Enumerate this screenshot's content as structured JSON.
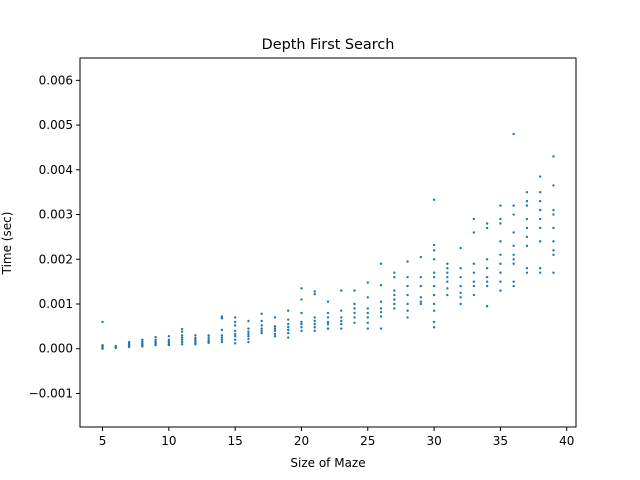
{
  "chart_data": {
    "type": "scatter",
    "title": "Depth First Search",
    "xlabel": "Size of Maze",
    "ylabel": "Time (sec)",
    "xlim": [
      3.3,
      40.7
    ],
    "ylim": [
      -0.00175,
      0.0065
    ],
    "xticks": [
      5,
      10,
      15,
      20,
      25,
      30,
      35,
      40
    ],
    "yticks": [
      -0.001,
      0.0,
      0.001,
      0.002,
      0.003,
      0.004,
      0.005,
      0.006
    ],
    "xtick_labels": [
      "5",
      "10",
      "15",
      "20",
      "25",
      "30",
      "35",
      "40"
    ],
    "ytick_labels": [
      "−0.001",
      "0.000",
      "0.001",
      "0.002",
      "0.003",
      "0.004",
      "0.005",
      "0.006"
    ],
    "grid": false,
    "color": "#1f77b4",
    "series": [
      {
        "points": [
          [
            5,
            0.0006
          ],
          [
            5,
            8e-05
          ],
          [
            5,
            6e-05
          ],
          [
            5,
            4e-05
          ],
          [
            5,
            2e-05
          ],
          [
            5,
            0.0
          ],
          [
            6,
            6e-05
          ],
          [
            6,
            4e-05
          ],
          [
            6,
            3e-05
          ],
          [
            6,
            2e-05
          ],
          [
            7,
            0.00015
          ],
          [
            7,
            0.00012
          ],
          [
            7,
            0.0001
          ],
          [
            7,
            8e-05
          ],
          [
            7,
            6e-05
          ],
          [
            7,
            4e-05
          ],
          [
            8,
            0.0002
          ],
          [
            8,
            0.00016
          ],
          [
            8,
            0.00012
          ],
          [
            8,
            0.0001
          ],
          [
            8,
            8e-05
          ],
          [
            8,
            5e-05
          ],
          [
            9,
            0.00026
          ],
          [
            9,
            0.0002
          ],
          [
            9,
            0.00016
          ],
          [
            9,
            0.00012
          ],
          [
            9,
            0.0001
          ],
          [
            9,
            8e-05
          ],
          [
            10,
            0.00028
          ],
          [
            10,
            0.0002
          ],
          [
            10,
            0.00016
          ],
          [
            10,
            0.00012
          ],
          [
            10,
            0.0001
          ],
          [
            10,
            8e-05
          ],
          [
            11,
            0.00044
          ],
          [
            11,
            0.00038
          ],
          [
            11,
            0.0003
          ],
          [
            11,
            0.00025
          ],
          [
            11,
            0.0002
          ],
          [
            11,
            0.00015
          ],
          [
            11,
            0.0001
          ],
          [
            12,
            0.0003
          ],
          [
            12,
            0.00024
          ],
          [
            12,
            0.0002
          ],
          [
            12,
            0.00016
          ],
          [
            12,
            0.00012
          ],
          [
            12,
            0.0001
          ],
          [
            13,
            0.0003
          ],
          [
            13,
            0.00025
          ],
          [
            13,
            0.0002
          ],
          [
            13,
            0.00016
          ],
          [
            13,
            0.00013
          ],
          [
            14,
            0.00072
          ],
          [
            14,
            0.00068
          ],
          [
            14,
            0.00042
          ],
          [
            14,
            0.0003
          ],
          [
            14,
            0.00025
          ],
          [
            14,
            0.0002
          ],
          [
            14,
            0.00015
          ],
          [
            15,
            0.0007
          ],
          [
            15,
            0.0006
          ],
          [
            15,
            0.00052
          ],
          [
            15,
            0.0004
          ],
          [
            15,
            0.00033
          ],
          [
            15,
            0.00028
          ],
          [
            15,
            0.0002
          ],
          [
            15,
            0.00012
          ],
          [
            16,
            0.00062
          ],
          [
            16,
            0.00045
          ],
          [
            16,
            0.00038
          ],
          [
            16,
            0.00033
          ],
          [
            16,
            0.00028
          ],
          [
            16,
            0.00022
          ],
          [
            16,
            0.00015
          ],
          [
            17,
            0.00078
          ],
          [
            17,
            0.00062
          ],
          [
            17,
            0.00052
          ],
          [
            17,
            0.00045
          ],
          [
            17,
            0.0004
          ],
          [
            17,
            0.00035
          ],
          [
            18,
            0.0007
          ],
          [
            18,
            0.0005
          ],
          [
            18,
            0.00045
          ],
          [
            18,
            0.0004
          ],
          [
            18,
            0.00033
          ],
          [
            18,
            0.00028
          ],
          [
            19,
            0.00085
          ],
          [
            19,
            0.00065
          ],
          [
            19,
            0.00055
          ],
          [
            19,
            0.00048
          ],
          [
            19,
            0.00042
          ],
          [
            19,
            0.00035
          ],
          [
            19,
            0.00025
          ],
          [
            20,
            0.00135
          ],
          [
            20,
            0.0011
          ],
          [
            20,
            0.0008
          ],
          [
            20,
            0.0006
          ],
          [
            20,
            0.00055
          ],
          [
            20,
            0.00048
          ],
          [
            20,
            0.0004
          ],
          [
            21,
            0.00128
          ],
          [
            21,
            0.00122
          ],
          [
            21,
            0.0007
          ],
          [
            21,
            0.00062
          ],
          [
            21,
            0.00055
          ],
          [
            21,
            0.00048
          ],
          [
            21,
            0.0004
          ],
          [
            22,
            0.00105
          ],
          [
            22,
            0.0008
          ],
          [
            22,
            0.0007
          ],
          [
            22,
            0.0006
          ],
          [
            22,
            0.00055
          ],
          [
            22,
            0.00045
          ],
          [
            23,
            0.0013
          ],
          [
            23,
            0.00085
          ],
          [
            23,
            0.0007
          ],
          [
            23,
            0.00062
          ],
          [
            23,
            0.00055
          ],
          [
            23,
            0.00045
          ],
          [
            24,
            0.0013
          ],
          [
            24,
            0.001
          ],
          [
            24,
            0.0009
          ],
          [
            24,
            0.0008
          ],
          [
            24,
            0.0007
          ],
          [
            24,
            0.00058
          ],
          [
            25,
            0.00148
          ],
          [
            25,
            0.00115
          ],
          [
            25,
            0.0009
          ],
          [
            25,
            0.0008
          ],
          [
            25,
            0.0007
          ],
          [
            25,
            0.00058
          ],
          [
            25,
            0.00045
          ],
          [
            26,
            0.0019
          ],
          [
            26,
            0.00142
          ],
          [
            26,
            0.00105
          ],
          [
            26,
            0.0009
          ],
          [
            26,
            0.00082
          ],
          [
            26,
            0.00072
          ],
          [
            26,
            0.00045
          ],
          [
            27,
            0.0017
          ],
          [
            27,
            0.0016
          ],
          [
            27,
            0.0013
          ],
          [
            27,
            0.0012
          ],
          [
            27,
            0.0011
          ],
          [
            27,
            0.001
          ],
          [
            27,
            0.0009
          ],
          [
            28,
            0.00195
          ],
          [
            28,
            0.0016
          ],
          [
            28,
            0.0014
          ],
          [
            28,
            0.0012
          ],
          [
            28,
            0.001
          ],
          [
            28,
            0.00085
          ],
          [
            28,
            0.0007
          ],
          [
            29,
            0.00205
          ],
          [
            29,
            0.0016
          ],
          [
            29,
            0.0014
          ],
          [
            29,
            0.00115
          ],
          [
            29,
            0.00105
          ],
          [
            29,
            0.001
          ],
          [
            30,
            0.00333
          ],
          [
            30,
            0.00232
          ],
          [
            30,
            0.0022
          ],
          [
            30,
            0.002
          ],
          [
            30,
            0.0017
          ],
          [
            30,
            0.0016
          ],
          [
            30,
            0.0014
          ],
          [
            30,
            0.0012
          ],
          [
            30,
            0.001
          ],
          [
            30,
            0.00085
          ],
          [
            30,
            0.0006
          ],
          [
            30,
            0.00048
          ],
          [
            31,
            0.0019
          ],
          [
            31,
            0.0018
          ],
          [
            31,
            0.0017
          ],
          [
            31,
            0.0016
          ],
          [
            31,
            0.0015
          ],
          [
            31,
            0.00135
          ],
          [
            31,
            0.0012
          ],
          [
            32,
            0.00225
          ],
          [
            32,
            0.0018
          ],
          [
            32,
            0.0016
          ],
          [
            32,
            0.0014
          ],
          [
            32,
            0.00125
          ],
          [
            32,
            0.00115
          ],
          [
            32,
            0.001
          ],
          [
            33,
            0.0029
          ],
          [
            33,
            0.0026
          ],
          [
            33,
            0.0019
          ],
          [
            33,
            0.0017
          ],
          [
            33,
            0.0015
          ],
          [
            33,
            0.0014
          ],
          [
            33,
            0.0012
          ],
          [
            34,
            0.0028
          ],
          [
            34,
            0.0027
          ],
          [
            34,
            0.002
          ],
          [
            34,
            0.0018
          ],
          [
            34,
            0.0016
          ],
          [
            34,
            0.0015
          ],
          [
            34,
            0.0014
          ],
          [
            34,
            0.00095
          ],
          [
            35,
            0.0032
          ],
          [
            35,
            0.0029
          ],
          [
            35,
            0.0028
          ],
          [
            35,
            0.0024
          ],
          [
            35,
            0.0021
          ],
          [
            35,
            0.0019
          ],
          [
            35,
            0.0017
          ],
          [
            35,
            0.0015
          ],
          [
            35,
            0.0013
          ],
          [
            36,
            0.0048
          ],
          [
            36,
            0.0032
          ],
          [
            36,
            0.003
          ],
          [
            36,
            0.0026
          ],
          [
            36,
            0.0023
          ],
          [
            36,
            0.0021
          ],
          [
            36,
            0.002
          ],
          [
            36,
            0.0019
          ],
          [
            36,
            0.0015
          ],
          [
            36,
            0.0014
          ],
          [
            37,
            0.0035
          ],
          [
            37,
            0.0033
          ],
          [
            37,
            0.0032
          ],
          [
            37,
            0.0029
          ],
          [
            37,
            0.0027
          ],
          [
            37,
            0.0025
          ],
          [
            37,
            0.0023
          ],
          [
            37,
            0.0018
          ],
          [
            37,
            0.0017
          ],
          [
            38,
            0.00385
          ],
          [
            38,
            0.0035
          ],
          [
            38,
            0.0033
          ],
          [
            38,
            0.0031
          ],
          [
            38,
            0.0029
          ],
          [
            38,
            0.0027
          ],
          [
            38,
            0.0024
          ],
          [
            38,
            0.0018
          ],
          [
            38,
            0.0017
          ],
          [
            39,
            0.0043
          ],
          [
            39,
            0.00365
          ],
          [
            39,
            0.0031
          ],
          [
            39,
            0.003
          ],
          [
            39,
            0.0027
          ],
          [
            39,
            0.0024
          ],
          [
            39,
            0.0022
          ],
          [
            39,
            0.0021
          ],
          [
            39,
            0.0017
          ]
        ]
      }
    ]
  }
}
